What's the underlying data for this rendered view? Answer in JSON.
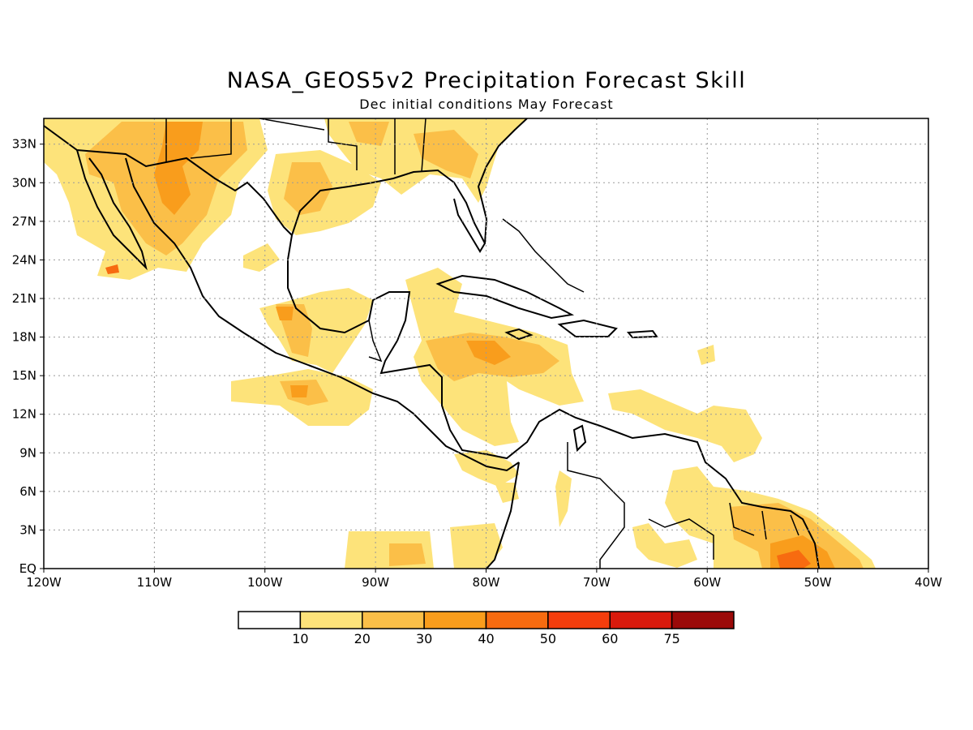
{
  "header": {
    "title": "NASA_GEOS5v2 Precipitation Forecast Skill",
    "subtitle": "Dec initial conditions  May Forecast"
  },
  "axes": {
    "lat_labels": [
      "EQ",
      "3N",
      "6N",
      "9N",
      "12N",
      "15N",
      "18N",
      "21N",
      "24N",
      "27N",
      "30N",
      "33N"
    ],
    "lat_values": [
      0,
      3,
      6,
      9,
      12,
      15,
      18,
      21,
      24,
      27,
      30,
      33
    ],
    "lon_labels": [
      "120W",
      "110W",
      "100W",
      "90W",
      "80W",
      "70W",
      "60W",
      "50W",
      "40W"
    ],
    "lon_values": [
      -120,
      -110,
      -100,
      -90,
      -80,
      -70,
      -60,
      -50,
      -40
    ],
    "lon_range": [
      -120,
      -40
    ],
    "lat_range": [
      0,
      35
    ],
    "grid": "dotted"
  },
  "colorbar": {
    "levels": [
      "10",
      "20",
      "30",
      "40",
      "50",
      "60",
      "75"
    ],
    "colors": [
      "#ffffff",
      "#fde37a",
      "#fbbf48",
      "#f99d1c",
      "#f76b10",
      "#f43d0c",
      "#d91a0c",
      "#9b0a09"
    ]
  },
  "colors": {
    "coastline": "#000000",
    "skill_10_20": "#fde37a",
    "skill_20_30": "#fbbf48",
    "skill_30_40": "#f99d1c",
    "skill_40_50": "#f76b10"
  }
}
